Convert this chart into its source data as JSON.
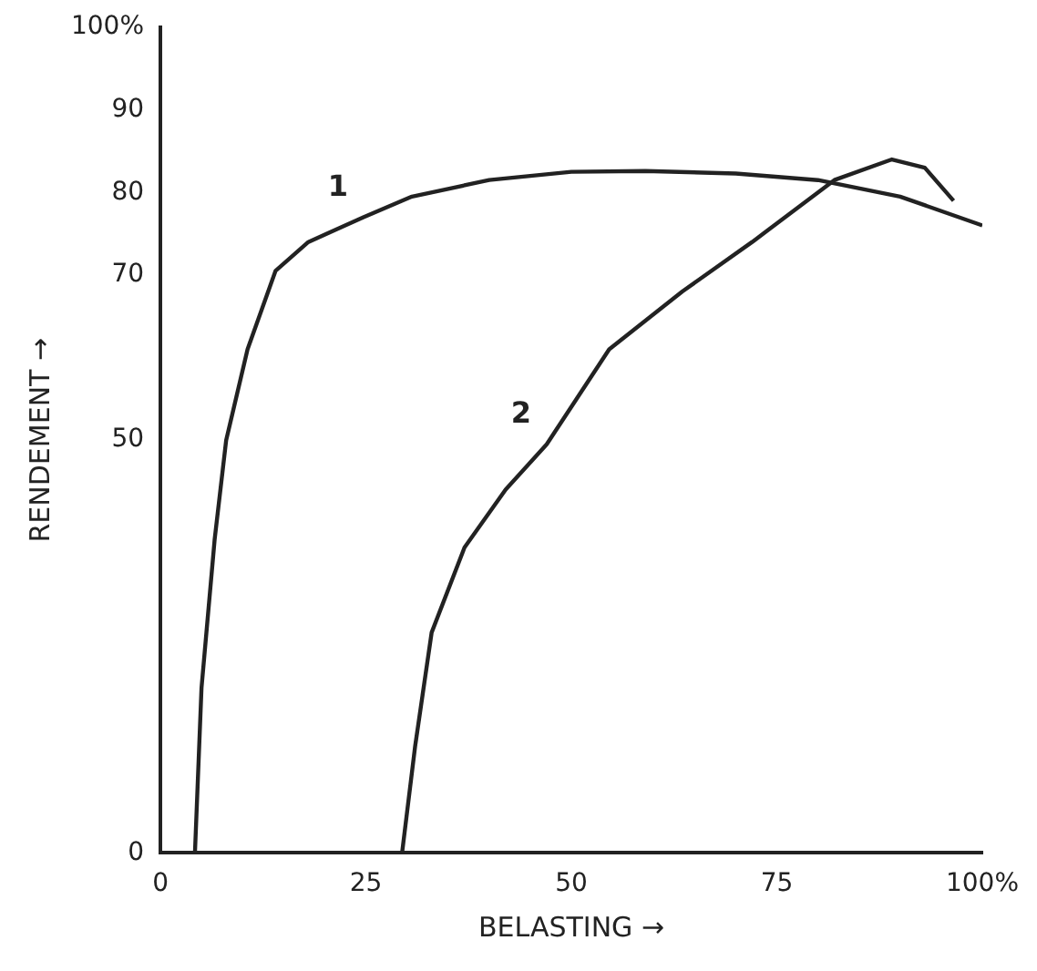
{
  "chart_data": {
    "type": "line",
    "xlabel": "BELASTING →",
    "ylabel": "RENDEMENT →",
    "xlim": [
      0,
      100
    ],
    "xticks": [
      0,
      25,
      50,
      75,
      {
        "value": 100,
        "label": "100%"
      }
    ],
    "ylim": [
      0,
      100
    ],
    "yticks": [
      0,
      50,
      70,
      80,
      90,
      {
        "value": 100,
        "label": "100%"
      }
    ],
    "grid": false,
    "legend": false,
    "marker": "none",
    "line_style": "solid",
    "series": [
      {
        "name": "1",
        "color": "#222222",
        "x": [
          4.2,
          5,
          6.6,
          8,
          10.6,
          14,
          18,
          24.7,
          30.6,
          40,
          50,
          59,
          70,
          80,
          90,
          100
        ],
        "values": [
          0,
          20,
          38,
          50,
          61,
          70.5,
          74,
          77,
          79.5,
          81.5,
          82.5,
          82.6,
          82.3,
          81.5,
          79.5,
          76
        ]
      },
      {
        "name": "2",
        "color": "#222222",
        "x": [
          29.4,
          31,
          33,
          37,
          42,
          47,
          54.6,
          63.5,
          72,
          82,
          89,
          93,
          96.5
        ],
        "values": [
          0,
          13,
          26.7,
          37,
          44,
          49.5,
          61,
          68,
          74,
          81.5,
          84,
          83,
          79
        ]
      }
    ]
  }
}
